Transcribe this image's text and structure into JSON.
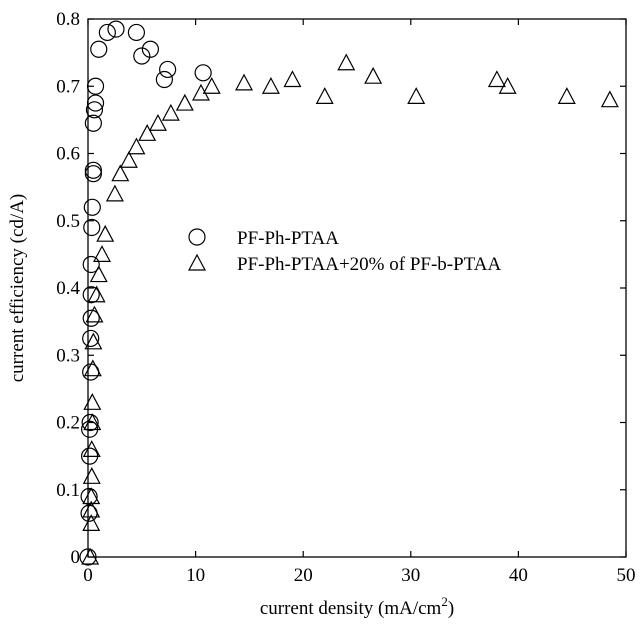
{
  "chart_data": {
    "type": "scatter",
    "xlabel": "current density (mA/cm",
    "xlabel_superscript": "2",
    "xlabel_suffix": ")",
    "ylabel": "current efficiency (cd/A)",
    "xlim": [
      0,
      50
    ],
    "ylim": [
      0,
      0.8
    ],
    "xticks": [
      "0",
      "10",
      "20",
      "30",
      "40",
      "50"
    ],
    "yticks": [
      "0",
      "0.1",
      "0.2",
      "0.3",
      "0.4",
      "0.5",
      "0.6",
      "0.7",
      "0.8"
    ],
    "grid": false,
    "legend_position": "center-right",
    "series": [
      {
        "name": "PF-Ph-PTAA",
        "marker": "circle",
        "points": [
          [
            0.0,
            0.0
          ],
          [
            0.1,
            0.065
          ],
          [
            0.1,
            0.09
          ],
          [
            0.15,
            0.15
          ],
          [
            0.15,
            0.19
          ],
          [
            0.2,
            0.2
          ],
          [
            0.25,
            0.275
          ],
          [
            0.25,
            0.325
          ],
          [
            0.3,
            0.355
          ],
          [
            0.3,
            0.39
          ],
          [
            0.3,
            0.435
          ],
          [
            0.35,
            0.49
          ],
          [
            0.4,
            0.52
          ],
          [
            0.5,
            0.57
          ],
          [
            0.5,
            0.575
          ],
          [
            0.5,
            0.645
          ],
          [
            0.6,
            0.665
          ],
          [
            0.7,
            0.675
          ],
          [
            0.7,
            0.7
          ],
          [
            1.0,
            0.755
          ],
          [
            1.8,
            0.78
          ],
          [
            2.6,
            0.785
          ],
          [
            4.5,
            0.78
          ],
          [
            5.0,
            0.745
          ],
          [
            5.8,
            0.755
          ],
          [
            7.1,
            0.71
          ],
          [
            7.4,
            0.725
          ],
          [
            10.7,
            0.72
          ]
        ]
      },
      {
        "name": "PF-Ph-PTAA+20% of PF-b-PTAA",
        "marker": "triangle",
        "points": [
          [
            0.2,
            0.0
          ],
          [
            0.3,
            0.05
          ],
          [
            0.3,
            0.07
          ],
          [
            0.3,
            0.09
          ],
          [
            0.35,
            0.12
          ],
          [
            0.35,
            0.16
          ],
          [
            0.4,
            0.2
          ],
          [
            0.4,
            0.23
          ],
          [
            0.45,
            0.28
          ],
          [
            0.5,
            0.32
          ],
          [
            0.6,
            0.36
          ],
          [
            0.8,
            0.39
          ],
          [
            1.0,
            0.42
          ],
          [
            1.3,
            0.45
          ],
          [
            1.6,
            0.48
          ],
          [
            2.5,
            0.54
          ],
          [
            3.0,
            0.57
          ],
          [
            3.8,
            0.59
          ],
          [
            4.5,
            0.61
          ],
          [
            5.5,
            0.63
          ],
          [
            6.5,
            0.645
          ],
          [
            7.7,
            0.66
          ],
          [
            9.0,
            0.675
          ],
          [
            10.5,
            0.69
          ],
          [
            11.5,
            0.7
          ],
          [
            14.5,
            0.705
          ],
          [
            17.0,
            0.7
          ],
          [
            19.0,
            0.71
          ],
          [
            22.0,
            0.685
          ],
          [
            24.0,
            0.735
          ],
          [
            26.5,
            0.715
          ],
          [
            30.5,
            0.685
          ],
          [
            38.0,
            0.71
          ],
          [
            39.0,
            0.7
          ],
          [
            44.5,
            0.685
          ],
          [
            48.5,
            0.68
          ]
        ]
      }
    ]
  }
}
